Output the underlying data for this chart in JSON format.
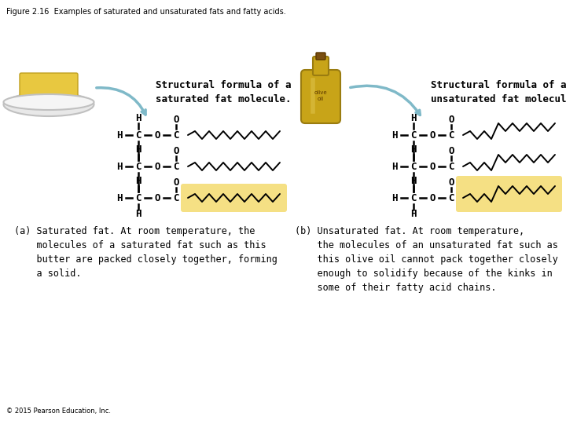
{
  "title": "Figure 2.16  Examples of saturated and unsaturated fats and fatty acids.",
  "title_fontsize": 7,
  "background_color": "#ffffff",
  "copyright": "© 2015 Pearson Education, Inc.",
  "left_label": "Structural formula of a\nsaturated fat molecule.",
  "right_label": "Structural formula of an\nunsaturated fat molecule.",
  "highlight_color": "#f5e084",
  "text_color": "#000000",
  "bond_color": "#000000",
  "zigzag_color": "#000000",
  "arrow_color": "#7fb9c8",
  "left_caption_line1": "(a) Saturated fat. At room temperature, the",
  "left_caption_line2": "    molecules of a saturated fat such as this",
  "left_caption_line3": "    butter are packed closely together, forming",
  "left_caption_line4": "    a solid.",
  "right_caption_line1": "(b) Unsaturated fat. At room temperature,",
  "right_caption_line2": "    the molecules of an unsaturated fat such as",
  "right_caption_line3": "    this olive oil cannot pack together closely",
  "right_caption_line4": "    enough to solidify because of the kinks in",
  "right_caption_line5": "    some of their fatty acid chains."
}
